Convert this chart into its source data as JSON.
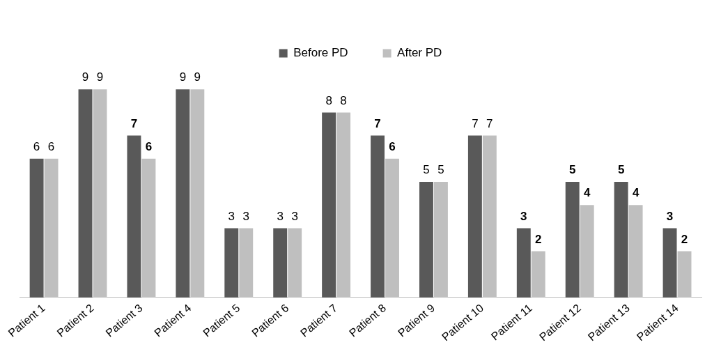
{
  "chart_data": {
    "type": "bar",
    "categories": [
      "Patient 1",
      "Patient 2",
      "Patient 3",
      "Patient 4",
      "Patient 5",
      "Patient 6",
      "Patient 7",
      "Patient 8",
      "Patient 9",
      "Patient 10",
      "Patient 11",
      "Patient 12",
      "Patient 13",
      "Patient 14"
    ],
    "series": [
      {
        "name": "Before PD",
        "color": "#595959",
        "values": [
          6,
          9,
          7,
          9,
          3,
          3,
          8,
          7,
          5,
          7,
          3,
          5,
          5,
          3
        ]
      },
      {
        "name": "After PD",
        "color": "#bfbfbf",
        "values": [
          6,
          9,
          6,
          9,
          3,
          3,
          8,
          6,
          5,
          7,
          2,
          4,
          4,
          2
        ]
      }
    ],
    "data_labels": true,
    "legend": "top",
    "grid": false
  }
}
